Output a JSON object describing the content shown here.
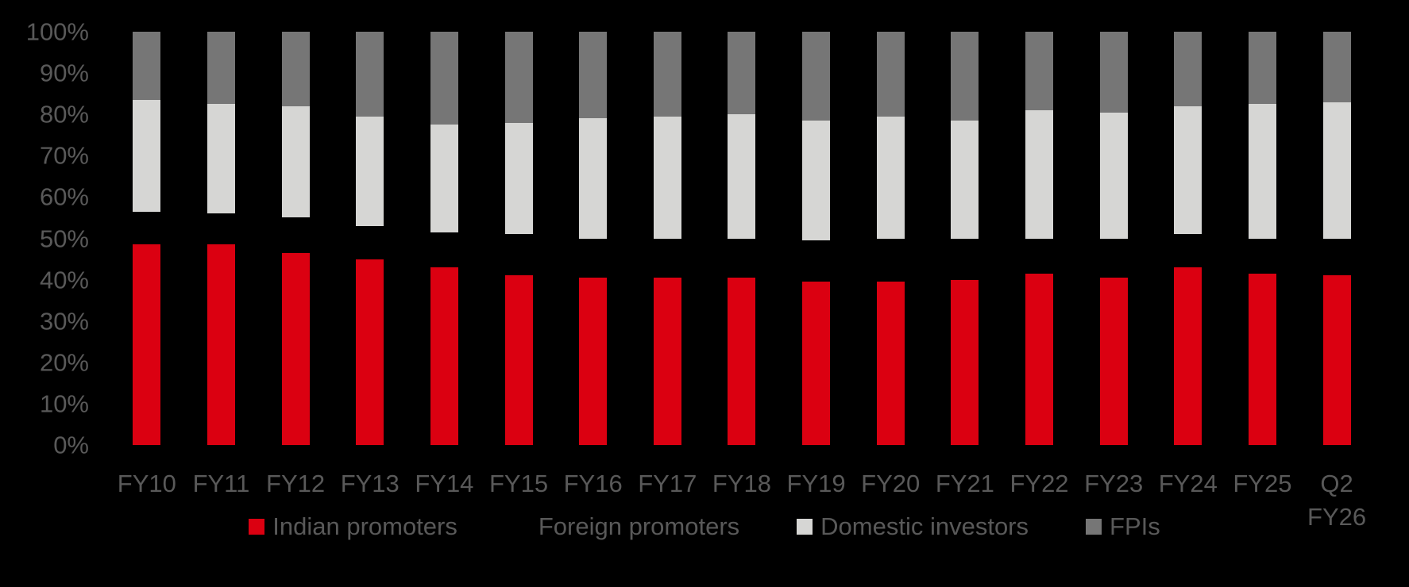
{
  "chart_data": {
    "type": "bar",
    "stacked": true,
    "orientation": "vertical",
    "background": "#000000",
    "text_color": "#595959",
    "grid": false,
    "categories": [
      "FY10",
      "FY11",
      "FY12",
      "FY13",
      "FY14",
      "FY15",
      "FY16",
      "FY17",
      "FY18",
      "FY19",
      "FY20",
      "FY21",
      "FY22",
      "FY23",
      "FY24",
      "FY25",
      "Q2\nFY26"
    ],
    "series": [
      {
        "name": "Indian promoters",
        "color": "#db0011",
        "values": [
          48.5,
          48.5,
          46.5,
          45,
          43,
          41,
          40.5,
          40.5,
          40.5,
          39.5,
          39.5,
          40,
          41.5,
          40.5,
          43,
          41.5,
          41
        ]
      },
      {
        "name": "Foreign promoters",
        "color": "#000000",
        "values": [
          8,
          7.5,
          8.5,
          8,
          8.5,
          10,
          9.5,
          9.5,
          9.5,
          10,
          10.5,
          10,
          8.5,
          9.5,
          8,
          8.5,
          9
        ]
      },
      {
        "name": "Domestic investors",
        "color": "#d6d6d4",
        "values": [
          27,
          26.5,
          27,
          26.5,
          26,
          27,
          29,
          29.5,
          30,
          29,
          29.5,
          28.5,
          31,
          30.5,
          31,
          32.5,
          33
        ]
      },
      {
        "name": "FPIs",
        "color": "#767676",
        "values": [
          16.5,
          17.5,
          18,
          20.5,
          22.5,
          22,
          21,
          20.5,
          20,
          21.5,
          20.5,
          21.5,
          19,
          19.5,
          18,
          17.5,
          17
        ]
      }
    ],
    "y_axis": {
      "min": 0,
      "max": 100,
      "ticks": [
        "0%",
        "10%",
        "20%",
        "30%",
        "40%",
        "50%",
        "60%",
        "70%",
        "80%",
        "90%",
        "100%"
      ]
    },
    "legend": {
      "position": "bottom",
      "items": [
        "Indian promoters",
        "Foreign promoters",
        "Domestic investors",
        "FPIs"
      ]
    },
    "title": "",
    "xlabel": "",
    "ylabel": ""
  }
}
